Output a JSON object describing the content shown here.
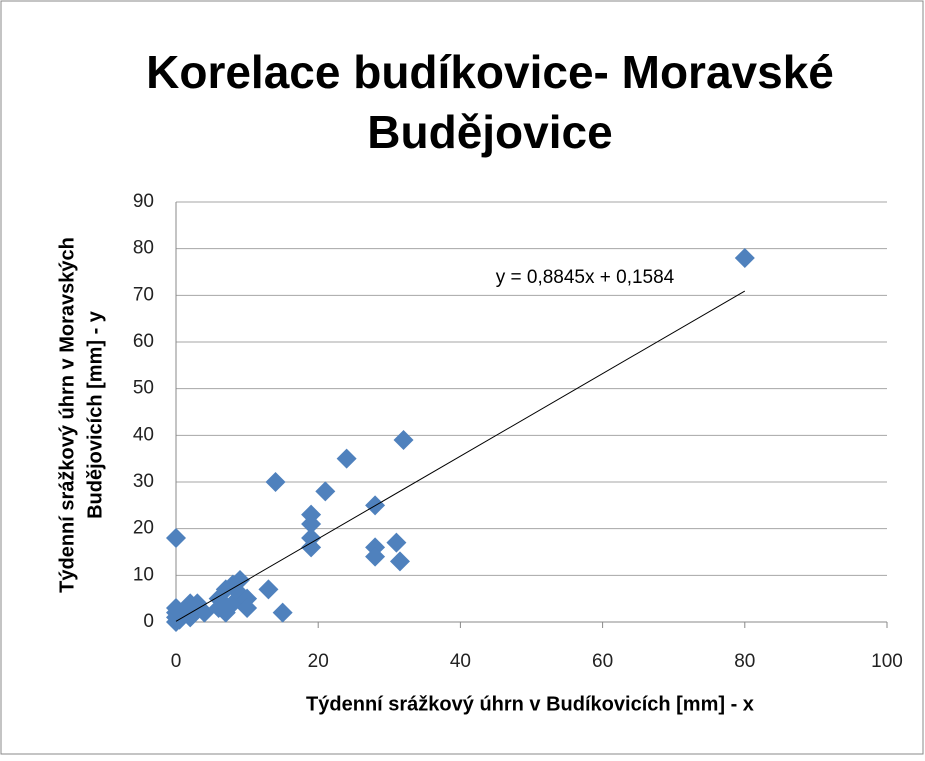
{
  "chart_data": {
    "type": "scatter",
    "title": [
      "Korelace budíkovice- Moravské",
      "Budějovice"
    ],
    "xlabel": "Týdenní srážkový úhrn v Budíkovicích [mm] - x",
    "ylabel": [
      "Týdenní srážkový úhrn v Moravských",
      "Budějovicích [mm] - y"
    ],
    "series": [
      {
        "name": "Moravské Budějovice",
        "color": "#4f81bd",
        "x": [
          0,
          0,
          0,
          0,
          0,
          0.5,
          1,
          2,
          3,
          3,
          4,
          2,
          6,
          6,
          7,
          7,
          8,
          8,
          9,
          9,
          10,
          10,
          13,
          14,
          15,
          19,
          19,
          19,
          19,
          21,
          24,
          28,
          28,
          28,
          31,
          31.5,
          32,
          80
        ],
        "values": [
          18,
          0,
          1,
          2,
          3,
          0.5,
          2,
          4,
          3,
          4,
          2,
          1,
          3,
          5,
          7,
          2,
          8,
          4,
          9,
          6,
          5,
          3,
          7,
          30,
          2,
          18,
          21,
          23,
          16,
          28,
          35,
          25,
          16,
          14,
          17,
          13,
          39,
          78
        ]
      }
    ],
    "trendline": {
      "label": "y = 0,8845x + 0,1584",
      "slope": 0.8845,
      "intercept": 0.1584,
      "x": [
        0,
        80
      ]
    },
    "xlim": [
      0,
      100
    ],
    "xticks": [
      0,
      20,
      40,
      60,
      80,
      100
    ],
    "ylim": [
      0,
      90
    ],
    "yticks": [
      0,
      10,
      20,
      30,
      40,
      50,
      60,
      70,
      80,
      90
    ],
    "grid": true
  }
}
